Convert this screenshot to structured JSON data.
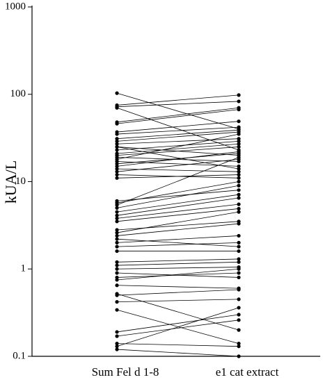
{
  "chart_data": {
    "type": "slope",
    "y_label": "kUA/L",
    "categories": [
      "Sum Fel d 1-8",
      "e1 cat extract"
    ],
    "log_scale": true,
    "color": "#000000",
    "ylim": [
      0.1,
      1000
    ],
    "yticks": [
      0.1,
      1,
      10,
      100,
      1000
    ],
    "series": [
      {
        "values": [
          103,
          40
        ]
      },
      {
        "values": [
          75,
          98
        ]
      },
      {
        "values": [
          72,
          83
        ]
      },
      {
        "values": [
          70,
          23
        ]
      },
      {
        "values": [
          48,
          70
        ]
      },
      {
        "values": [
          46,
          67
        ]
      },
      {
        "values": [
          37,
          49
        ]
      },
      {
        "values": [
          35,
          42
        ]
      },
      {
        "values": [
          31,
          39
        ]
      },
      {
        "values": [
          29,
          37
        ]
      },
      {
        "values": [
          27,
          31
        ]
      },
      {
        "values": [
          25,
          20
        ]
      },
      {
        "values": [
          23,
          29
        ]
      },
      {
        "values": [
          21,
          27
        ]
      },
      {
        "values": [
          20,
          25
        ]
      },
      {
        "values": [
          19,
          17
        ]
      },
      {
        "values": [
          18,
          35
        ]
      },
      {
        "values": [
          17,
          15
        ]
      },
      {
        "values": [
          16,
          21
        ]
      },
      {
        "values": [
          15,
          22
        ]
      },
      {
        "values": [
          14,
          13
        ]
      },
      {
        "values": [
          13,
          18
        ]
      },
      {
        "values": [
          12,
          11
        ]
      },
      {
        "values": [
          11,
          12
        ]
      },
      {
        "values": [
          5.7,
          10
        ]
      },
      {
        "values": [
          5.4,
          19
        ]
      },
      {
        "values": [
          5.0,
          9
        ]
      },
      {
        "values": [
          4.5,
          7.1
        ]
      },
      {
        "values": [
          4.1,
          6.5
        ]
      },
      {
        "values": [
          3.8,
          5.5
        ]
      },
      {
        "values": [
          3.5,
          4.9
        ]
      },
      {
        "values": [
          2.8,
          3.5
        ]
      },
      {
        "values": [
          2.6,
          4.5
        ]
      },
      {
        "values": [
          2.4,
          3.3
        ]
      },
      {
        "values": [
          2.2,
          1.8
        ]
      },
      {
        "values": [
          2.0,
          2.4
        ]
      },
      {
        "values": [
          1.8,
          2.0
        ]
      },
      {
        "values": [
          1.6,
          1.6
        ]
      },
      {
        "values": [
          1.2,
          1.3
        ]
      },
      {
        "values": [
          1.1,
          1.2
        ]
      },
      {
        "values": [
          1.0,
          1.05
        ]
      },
      {
        "values": [
          0.9,
          0.8
        ]
      },
      {
        "values": [
          0.8,
          0.9
        ]
      },
      {
        "values": [
          0.75,
          1.0
        ]
      },
      {
        "values": [
          0.65,
          0.6
        ]
      },
      {
        "values": [
          0.5,
          0.58
        ]
      },
      {
        "values": [
          0.42,
          0.45
        ]
      },
      {
        "values": [
          0.34,
          0.14
        ]
      },
      {
        "values": [
          0.19,
          0.3
        ]
      },
      {
        "values": [
          0.17,
          0.26
        ]
      },
      {
        "values": [
          0.14,
          0.13
        ]
      },
      {
        "values": [
          0.13,
          0.36
        ]
      },
      {
        "values": [
          0.12,
          0.1
        ]
      },
      {
        "values": [
          0.52,
          0.2
        ]
      },
      {
        "values": [
          25,
          14
        ]
      },
      {
        "values": [
          6,
          8
        ]
      }
    ]
  }
}
